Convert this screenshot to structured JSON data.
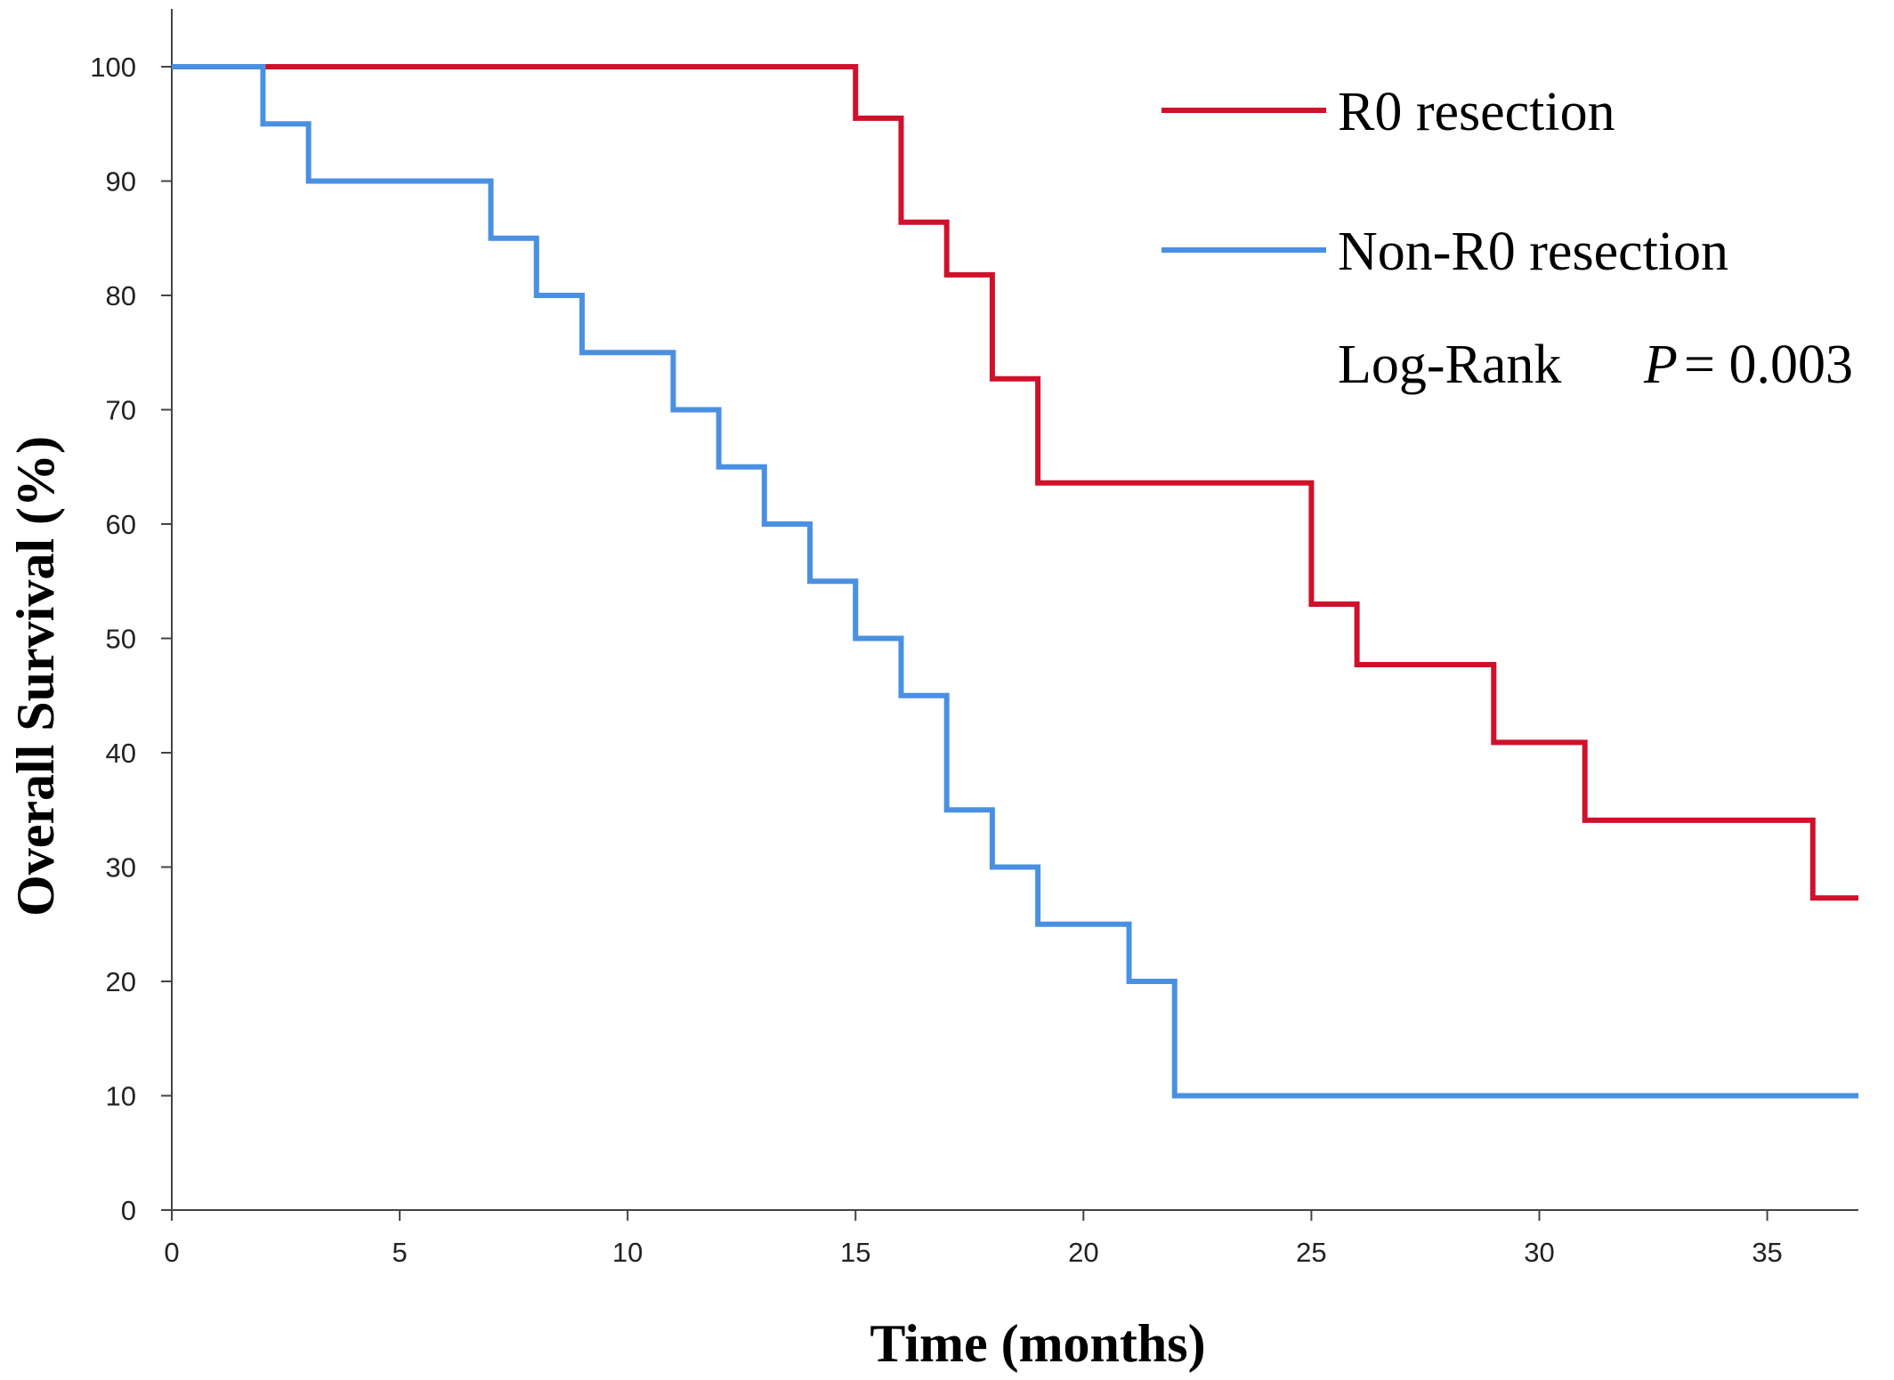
{
  "chart_data": {
    "type": "line",
    "step": true,
    "title": "",
    "xlabel": "Time (months)",
    "ylabel": "Overall Survival (%)",
    "xlim": [
      0,
      37
    ],
    "ylim": [
      0,
      100
    ],
    "x_ticks": [
      0,
      5,
      10,
      15,
      20,
      25,
      30,
      35
    ],
    "y_ticks": [
      0,
      10,
      20,
      30,
      40,
      50,
      60,
      70,
      80,
      90,
      100
    ],
    "grid": false,
    "legend_position": "top-right",
    "series": [
      {
        "name": "R0 resection",
        "color": "#d0112b",
        "x": [
          0,
          15,
          16,
          17,
          18,
          19,
          25,
          26,
          29,
          31,
          36,
          37
        ],
        "y": [
          100,
          95.5,
          86.4,
          81.8,
          72.7,
          63.6,
          53.0,
          47.7,
          40.9,
          34.1,
          27.3,
          27.3
        ]
      },
      {
        "name": "Non-R0 resection",
        "color": "#4a90e2",
        "x": [
          0,
          2,
          3,
          7,
          8,
          9,
          11,
          12,
          13,
          14,
          15,
          16,
          17,
          18,
          19,
          21,
          22,
          37
        ],
        "y": [
          100,
          95,
          90,
          85,
          80,
          75,
          70,
          65,
          60,
          55,
          50,
          45,
          35,
          30,
          25,
          20,
          10,
          10
        ]
      }
    ],
    "annotations": {
      "test_label": "Log-Rank",
      "p_symbol": "P",
      "p_value": "= 0.003"
    }
  }
}
